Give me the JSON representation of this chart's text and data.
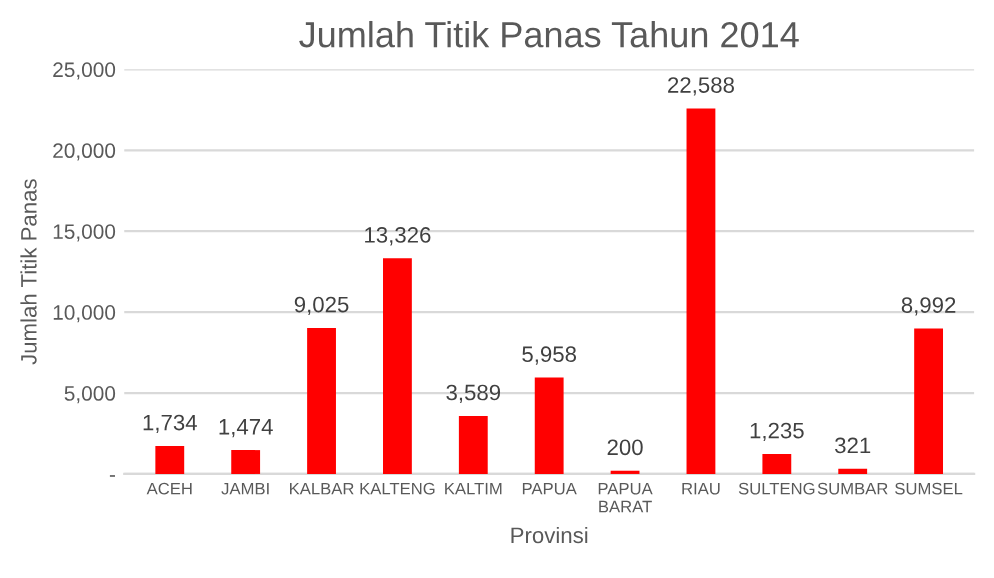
{
  "chart_data": {
    "type": "bar",
    "title": "Jumlah Titik Panas Tahun 2014",
    "xlabel": "Provinsi",
    "ylabel": "Jumlah Titik Panas",
    "categories": [
      "ACEH",
      "JAMBI",
      "KALBAR",
      "KALTENG",
      "KALTIM",
      "PAPUA",
      "PAPUA\nBARAT",
      "RIAU",
      "SULTENG",
      "SUMBAR",
      "SUMSEL"
    ],
    "values": [
      1734,
      1474,
      9025,
      13326,
      3589,
      5958,
      200,
      22588,
      1235,
      321,
      8992
    ],
    "value_labels": [
      "1,734",
      "1,474",
      "9,025",
      "13,326",
      "3,589",
      "5,958",
      "200",
      "22,588",
      "1,235",
      "321",
      "8,992"
    ],
    "color": "#ff0000",
    "ylim": [
      0,
      25000
    ],
    "yticks": [
      {
        "value": 0,
        "label": "-"
      },
      {
        "value": 5000,
        "label": "5,000"
      },
      {
        "value": 10000,
        "label": "10,000"
      },
      {
        "value": 15000,
        "label": "15,000"
      },
      {
        "value": 20000,
        "label": "20,000"
      },
      {
        "value": 25000,
        "label": "25,000"
      }
    ],
    "grid": "y",
    "legend": false
  }
}
